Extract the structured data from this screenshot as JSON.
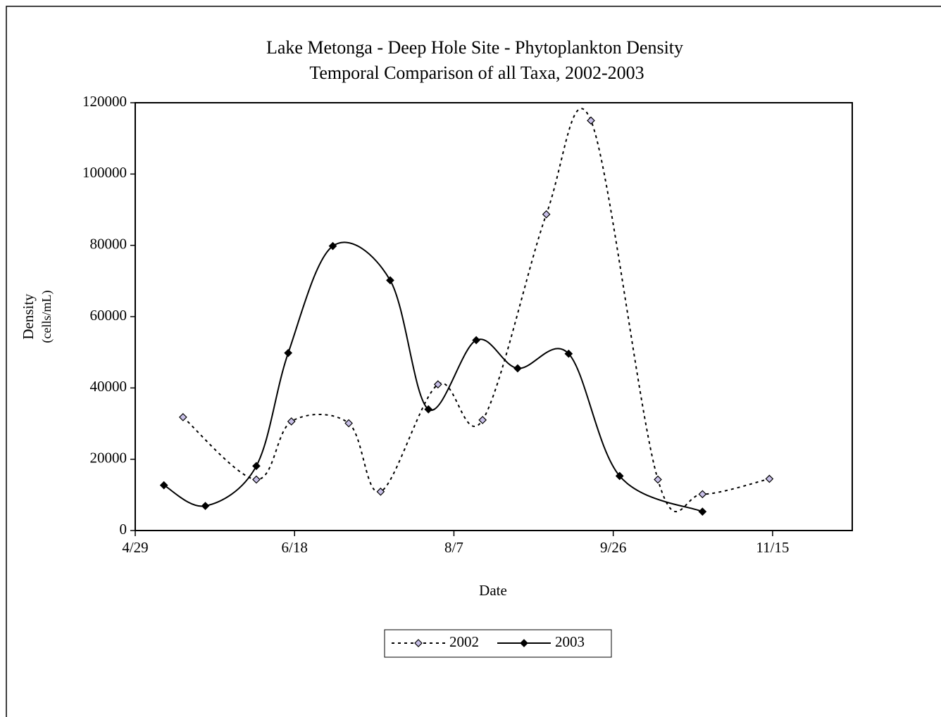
{
  "chart_data": {
    "type": "line",
    "title": [
      "Lake Metonga - Deep Hole Site - Phytoplankton Density",
      "Temporal Comparison of all Taxa, 2002-2003"
    ],
    "xlabel": "Date",
    "ylabel": [
      "Density",
      "(cells/mL)"
    ],
    "xlim": [
      119,
      344
    ],
    "xticks": [
      {
        "value": 119,
        "label": "4/29"
      },
      {
        "value": 169,
        "label": "6/18"
      },
      {
        "value": 219,
        "label": "8/7"
      },
      {
        "value": 269,
        "label": "9/26"
      },
      {
        "value": 319,
        "label": "11/15"
      }
    ],
    "ylim": [
      0,
      120000
    ],
    "yticks": [
      0,
      20000,
      40000,
      60000,
      80000,
      100000,
      120000
    ],
    "legend": "bottom",
    "series": [
      {
        "name": "2002",
        "color": "#000000",
        "marker_fill": "#c8c0e8",
        "style": "dashed",
        "x": [
          134,
          157,
          168,
          186,
          196,
          214,
          228,
          248,
          262,
          283,
          297,
          318
        ],
        "values": [
          31800,
          14300,
          30600,
          30100,
          10900,
          41000,
          31000,
          88700,
          115000,
          14300,
          10200,
          14500
        ]
      },
      {
        "name": "2003",
        "color": "#000000",
        "marker_fill": "#000000",
        "style": "solid",
        "x": [
          128,
          141,
          157,
          167,
          181,
          199,
          211,
          226,
          239,
          255,
          271,
          297
        ],
        "values": [
          12700,
          6900,
          18100,
          49800,
          79800,
          70200,
          34000,
          53400,
          45500,
          49600,
          15300,
          5300
        ]
      }
    ]
  }
}
